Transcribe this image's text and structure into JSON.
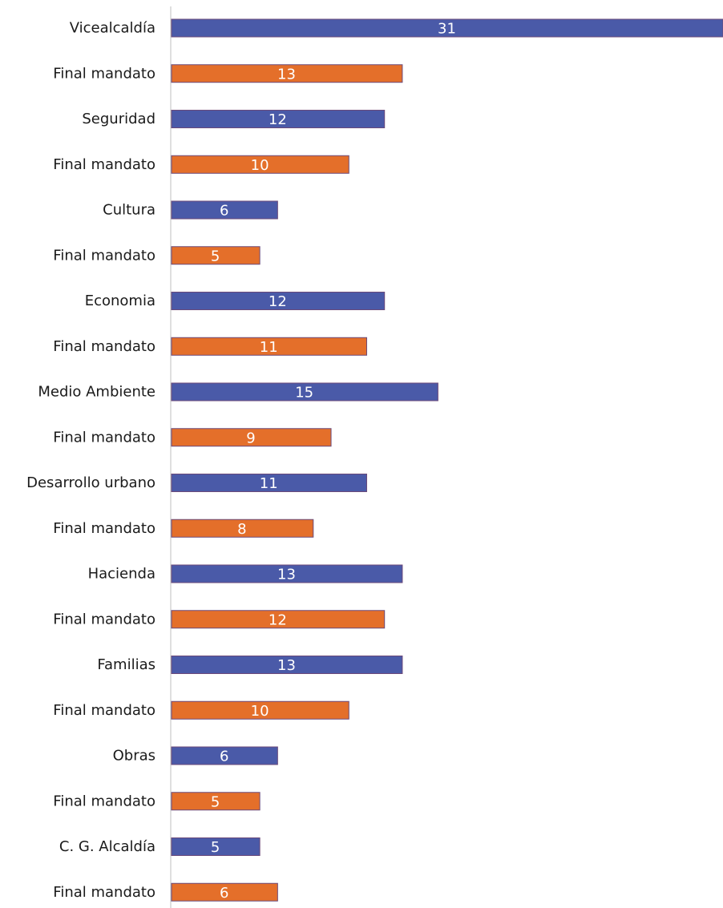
{
  "chart_data": {
    "type": "bar",
    "orientation": "horizontal",
    "title": "",
    "xlabel": "",
    "ylabel": "",
    "grid": false,
    "legend": "none",
    "xlim": [
      0,
      31
    ],
    "categories": [
      "Vicealcaldía",
      "Final mandato",
      "Seguridad",
      "Final mandato",
      "Cultura",
      "Final mandato",
      "Economia",
      "Final mandato",
      "Medio Ambiente",
      "Final mandato",
      "Desarrollo urbano",
      "Final mandato",
      "Hacienda",
      "Final mandato",
      "Familias",
      "Final mandato",
      "Obras",
      "Final mandato",
      "C. G. Alcaldía",
      "Final mandato"
    ],
    "values": [
      31,
      13,
      12,
      10,
      6,
      5,
      12,
      11,
      15,
      9,
      11,
      8,
      13,
      12,
      13,
      10,
      6,
      5,
      5,
      6
    ],
    "bar_colors": {
      "department": "#4a5aa8",
      "final_mandato": "#e46f2a",
      "edge": "#6b4a7a"
    },
    "data_labels": true
  }
}
